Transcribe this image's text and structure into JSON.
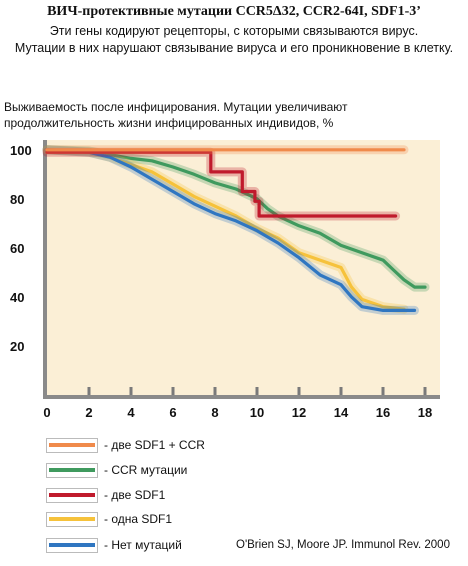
{
  "header": {
    "title": "ВИЧ-протективные мутации  CCR5Δ32, CCR2-64I, SDF1-3’",
    "subtitle_line1": "Эти гены кодируют рецепторы, с которыми связываются вирус.",
    "subtitle_line2": "Мутации в них нарушают связывание вируса и его проникновение в клетку."
  },
  "chart_data": {
    "type": "line",
    "ylabel_line1": "Выживаемость после инфицирования. Мутации увеличивают",
    "ylabel_line2": "продолжительность жизни инфицированных индивидов, %",
    "xlim": [
      0,
      18
    ],
    "ylim": [
      0,
      100
    ],
    "x_ticks": [
      0,
      2,
      4,
      6,
      8,
      10,
      12,
      14,
      16,
      18
    ],
    "y_ticks": [
      20,
      40,
      60,
      80,
      100
    ],
    "background": "#fbefd6",
    "series": [
      {
        "name": "две SDF1 + CCR",
        "color": "#f08a4b",
        "points": [
          [
            0,
            100
          ],
          [
            17,
            100
          ]
        ]
      },
      {
        "name": "CCR мутации",
        "color": "#3f9a5e",
        "points": [
          [
            0,
            100
          ],
          [
            2,
            99.5
          ],
          [
            3,
            98
          ],
          [
            4,
            96.5
          ],
          [
            5,
            95.5
          ],
          [
            6,
            93
          ],
          [
            7,
            90
          ],
          [
            8,
            86.5
          ],
          [
            9,
            84
          ],
          [
            10,
            80
          ],
          [
            10.5,
            76
          ],
          [
            11,
            73
          ],
          [
            11.5,
            71
          ],
          [
            12,
            69
          ],
          [
            13,
            66
          ],
          [
            14,
            61
          ],
          [
            15,
            58
          ],
          [
            16,
            55
          ],
          [
            16.5,
            51
          ],
          [
            17,
            47
          ],
          [
            17.5,
            44
          ],
          [
            18,
            44
          ]
        ]
      },
      {
        "name": "две SDF1",
        "color": "#c01a2c",
        "points": [
          [
            0,
            99
          ],
          [
            7.8,
            99
          ],
          [
            7.8,
            91
          ],
          [
            9.3,
            91
          ],
          [
            9.3,
            83
          ],
          [
            9.9,
            83
          ],
          [
            9.9,
            79
          ],
          [
            10.1,
            79
          ],
          [
            10.1,
            73
          ],
          [
            16.6,
            73
          ]
        ]
      },
      {
        "name": "одна SDF1",
        "color": "#f6c23b",
        "points": [
          [
            0,
            100
          ],
          [
            2,
            99
          ],
          [
            3,
            97
          ],
          [
            4,
            94
          ],
          [
            5,
            91
          ],
          [
            6,
            86
          ],
          [
            7,
            81
          ],
          [
            8,
            77
          ],
          [
            9,
            73
          ],
          [
            10,
            68
          ],
          [
            11,
            64
          ],
          [
            12,
            58
          ],
          [
            13,
            55
          ],
          [
            14,
            52
          ],
          [
            14.5,
            44
          ],
          [
            15,
            39
          ],
          [
            16,
            36
          ],
          [
            17,
            35
          ]
        ]
      },
      {
        "name": "Нет мутаций",
        "color": "#2f76c1",
        "points": [
          [
            0,
            100
          ],
          [
            2,
            99
          ],
          [
            3,
            97
          ],
          [
            4,
            93
          ],
          [
            5,
            88
          ],
          [
            6,
            83
          ],
          [
            7,
            78
          ],
          [
            8,
            74
          ],
          [
            9,
            71
          ],
          [
            10,
            67
          ],
          [
            11,
            62
          ],
          [
            12,
            56
          ],
          [
            13,
            49
          ],
          [
            14,
            45
          ],
          [
            14.5,
            40
          ],
          [
            15,
            36
          ],
          [
            16,
            34.5
          ],
          [
            17,
            34.5
          ],
          [
            17.5,
            34.5
          ]
        ]
      }
    ]
  },
  "legend": [
    {
      "label": "две SDF1 + CCR",
      "color": "#f08a4b"
    },
    {
      "label": "CCR мутации",
      "color": "#3f9a5e"
    },
    {
      "label": "две SDF1",
      "color": "#c01a2c"
    },
    {
      "label": "одна SDF1",
      "color": "#f6c23b"
    },
    {
      "label": "Нет мутаций",
      "color": "#2f76c1"
    }
  ],
  "citation": "O'Brien SJ, Moore JP.  Immunol Rev. 2000"
}
